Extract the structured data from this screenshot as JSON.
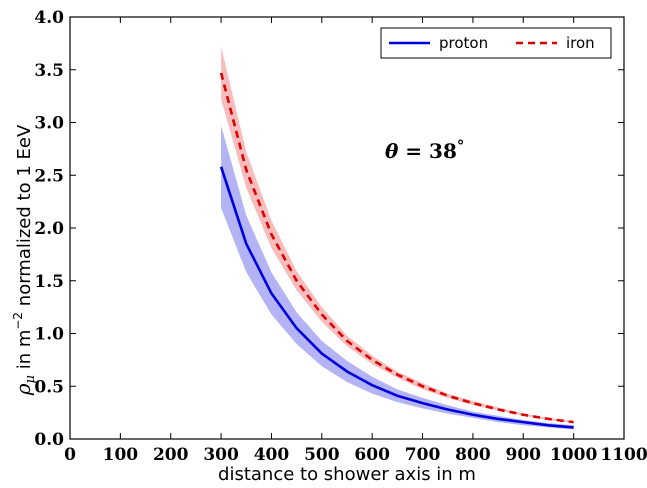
{
  "chart_data": {
    "type": "line",
    "xlabel": "distance to shower axis in m",
    "ylabel_parts": [
      "ρ",
      "μ",
      " in m",
      "−2",
      " normalized to 1 EeV"
    ],
    "annotation_parts": [
      "θ",
      " = 38",
      "°"
    ],
    "xlim": [
      0,
      1100
    ],
    "ylim": [
      0.0,
      4.0
    ],
    "x_ticks": [
      0,
      100,
      200,
      300,
      400,
      500,
      600,
      700,
      800,
      900,
      1000,
      1100
    ],
    "x_tick_labels": [
      "0",
      "100",
      "200",
      "300",
      "400",
      "500",
      "600",
      "700",
      "800",
      "900",
      "1000",
      "1100"
    ],
    "y_ticks": [
      0.0,
      0.5,
      1.0,
      1.5,
      2.0,
      2.5,
      3.0,
      3.5,
      4.0
    ],
    "y_tick_labels": [
      "0.0",
      "0.5",
      "1.0",
      "1.5",
      "2.0",
      "2.5",
      "3.0",
      "3.5",
      "4.0"
    ],
    "x": [
      300,
      350,
      400,
      450,
      500,
      550,
      600,
      650,
      700,
      750,
      800,
      850,
      900,
      950,
      1000
    ],
    "legend_position": "upper-right",
    "series": [
      {
        "name": "proton",
        "color": "#0000dd",
        "band_color": "#8c8cf0",
        "dash": "solid",
        "values": [
          2.58,
          1.85,
          1.38,
          1.05,
          0.81,
          0.64,
          0.51,
          0.41,
          0.34,
          0.28,
          0.23,
          0.19,
          0.16,
          0.13,
          0.11
        ],
        "lower": [
          2.19,
          1.58,
          1.18,
          0.9,
          0.69,
          0.54,
          0.43,
          0.35,
          0.29,
          0.24,
          0.2,
          0.16,
          0.13,
          0.11,
          0.09
        ],
        "upper": [
          2.97,
          2.12,
          1.58,
          1.2,
          0.93,
          0.74,
          0.59,
          0.47,
          0.39,
          0.32,
          0.26,
          0.22,
          0.18,
          0.15,
          0.13
        ]
      },
      {
        "name": "iron",
        "color": "#dd0000",
        "band_color": "#f29a9a",
        "dash": "dashed",
        "values": [
          3.47,
          2.55,
          1.94,
          1.5,
          1.18,
          0.93,
          0.75,
          0.61,
          0.5,
          0.41,
          0.34,
          0.28,
          0.23,
          0.19,
          0.16
        ],
        "lower": [
          3.22,
          2.38,
          1.81,
          1.41,
          1.11,
          0.88,
          0.71,
          0.58,
          0.47,
          0.39,
          0.32,
          0.27,
          0.22,
          0.18,
          0.15
        ],
        "upper": [
          3.72,
          2.72,
          2.07,
          1.59,
          1.25,
          0.98,
          0.79,
          0.64,
          0.53,
          0.43,
          0.36,
          0.3,
          0.24,
          0.2,
          0.17
        ]
      }
    ]
  }
}
